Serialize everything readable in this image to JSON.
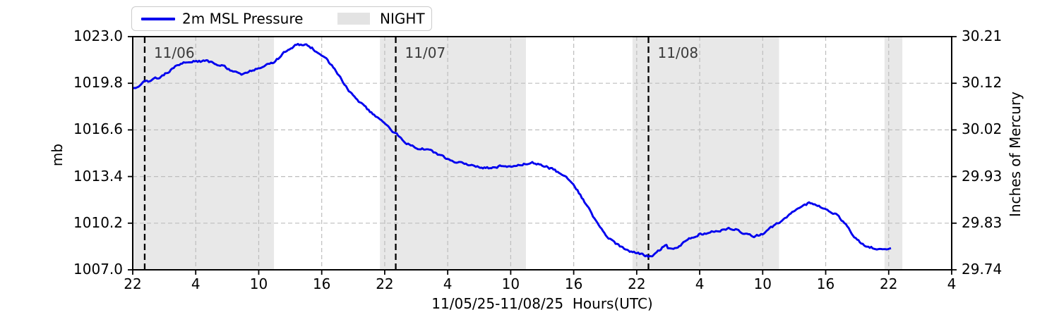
{
  "legend": {
    "items": [
      {
        "label": "2m MSL Pressure",
        "swatch": "line"
      },
      {
        "label": "NIGHT",
        "swatch": "patch"
      }
    ]
  },
  "colors": {
    "pressure_line": "#0000ee",
    "night_band": "#e8e8e8",
    "legend_night_patch": "#e3e3e3",
    "grid": "#bdbdbd",
    "day_line": "#000000",
    "day_label": "#3a3a3a",
    "axis": "#000000"
  },
  "chart_data": {
    "type": "line",
    "title": "",
    "xlabel": "11/05/25-11/08/25  Hours(UTC)",
    "ylabel_left": "mb",
    "ylabel_right": "Inches of Mercury",
    "x_unit": "hours after 11/05/25 22:00 UTC",
    "xlim": [
      0,
      78
    ],
    "ylim_left": [
      1007.0,
      1023.0
    ],
    "ylim_right": [
      29.74,
      30.21
    ],
    "grid": true,
    "legend_position": "top-left",
    "x_ticks": [
      {
        "t": 0,
        "label": "22"
      },
      {
        "t": 6,
        "label": "4"
      },
      {
        "t": 12,
        "label": "10"
      },
      {
        "t": 18,
        "label": "16"
      },
      {
        "t": 24,
        "label": "22"
      },
      {
        "t": 30,
        "label": "4"
      },
      {
        "t": 36,
        "label": "10"
      },
      {
        "t": 42,
        "label": "16"
      },
      {
        "t": 48,
        "label": "22"
      },
      {
        "t": 54,
        "label": "4"
      },
      {
        "t": 60,
        "label": "10"
      },
      {
        "t": 66,
        "label": "16"
      },
      {
        "t": 72,
        "label": "22"
      },
      {
        "t": 78,
        "label": "4"
      }
    ],
    "y_ticks_left": [
      {
        "v": 1023.0,
        "label": "1023.0"
      },
      {
        "v": 1019.8,
        "label": "1019.8"
      },
      {
        "v": 1016.6,
        "label": "1016.6"
      },
      {
        "v": 1013.4,
        "label": "1013.4"
      },
      {
        "v": 1010.2,
        "label": "1010.2"
      },
      {
        "v": 1007.0,
        "label": "1007.0"
      }
    ],
    "y_ticks_right": [
      {
        "v": 1023.0,
        "label": "30.21"
      },
      {
        "v": 1019.8,
        "label": "30.12"
      },
      {
        "v": 1016.6,
        "label": "30.02"
      },
      {
        "v": 1013.4,
        "label": "29.93"
      },
      {
        "v": 1010.2,
        "label": "29.83"
      },
      {
        "v": 1007.0,
        "label": "29.74"
      }
    ],
    "night_bands": [
      [
        0,
        13.45
      ],
      [
        23.54,
        37.45
      ],
      [
        47.6,
        61.56
      ],
      [
        71.6,
        73.3
      ]
    ],
    "day_lines": [
      {
        "t": 1.14,
        "label": "11/06"
      },
      {
        "t": 25.05,
        "label": "11/07"
      },
      {
        "t": 49.12,
        "label": "11/08"
      }
    ],
    "noise_mb": 0.07,
    "series": [
      {
        "name": "2m MSL Pressure",
        "points": [
          [
            0,
            1019.45
          ],
          [
            0.5,
            1019.6
          ],
          [
            1,
            1019.85
          ],
          [
            1.5,
            1019.95
          ],
          [
            2,
            1020.1
          ],
          [
            2.5,
            1020.2
          ],
          [
            3,
            1020.4
          ],
          [
            3.5,
            1020.65
          ],
          [
            4,
            1020.9
          ],
          [
            4.5,
            1021.1
          ],
          [
            5,
            1021.2
          ],
          [
            5.5,
            1021.3
          ],
          [
            6,
            1021.35
          ],
          [
            6.5,
            1021.3
          ],
          [
            7,
            1021.3
          ],
          [
            7.5,
            1021.25
          ],
          [
            8,
            1021.1
          ],
          [
            8.5,
            1021.0
          ],
          [
            9,
            1020.85
          ],
          [
            9.5,
            1020.6
          ],
          [
            10,
            1020.45
          ],
          [
            10.5,
            1020.45
          ],
          [
            11,
            1020.55
          ],
          [
            11.5,
            1020.7
          ],
          [
            12,
            1020.85
          ],
          [
            12.5,
            1020.95
          ],
          [
            13,
            1021.1
          ],
          [
            13.5,
            1021.3
          ],
          [
            14,
            1021.6
          ],
          [
            14.5,
            1021.95
          ],
          [
            15,
            1022.2
          ],
          [
            15.5,
            1022.4
          ],
          [
            16,
            1022.45
          ],
          [
            16.5,
            1022.4
          ],
          [
            17,
            1022.25
          ],
          [
            17.5,
            1022.0
          ],
          [
            18,
            1021.7
          ],
          [
            18.5,
            1021.4
          ],
          [
            19,
            1021.0
          ],
          [
            19.5,
            1020.5
          ],
          [
            20,
            1019.9
          ],
          [
            20.5,
            1019.4
          ],
          [
            21,
            1018.9
          ],
          [
            21.5,
            1018.55
          ],
          [
            22,
            1018.25
          ],
          [
            22.5,
            1017.9
          ],
          [
            23,
            1017.6
          ],
          [
            23.5,
            1017.35
          ],
          [
            24,
            1017.1
          ],
          [
            24.5,
            1016.7
          ],
          [
            25,
            1016.35
          ],
          [
            25.5,
            1016.1
          ],
          [
            26,
            1015.75
          ],
          [
            26.5,
            1015.5
          ],
          [
            27,
            1015.35
          ],
          [
            27.5,
            1015.3
          ],
          [
            28,
            1015.25
          ],
          [
            28.5,
            1015.1
          ],
          [
            29,
            1014.9
          ],
          [
            29.5,
            1014.75
          ],
          [
            30,
            1014.6
          ],
          [
            30.5,
            1014.45
          ],
          [
            31,
            1014.35
          ],
          [
            31.5,
            1014.25
          ],
          [
            32,
            1014.2
          ],
          [
            32.5,
            1014.1
          ],
          [
            33,
            1014.05
          ],
          [
            33.5,
            1014.0
          ],
          [
            34,
            1014.0
          ],
          [
            34.5,
            1014.05
          ],
          [
            35,
            1014.1
          ],
          [
            35.5,
            1014.05
          ],
          [
            36,
            1014.05
          ],
          [
            36.5,
            1014.1
          ],
          [
            37,
            1014.2
          ],
          [
            37.5,
            1014.3
          ],
          [
            38,
            1014.35
          ],
          [
            38.5,
            1014.3
          ],
          [
            39,
            1014.2
          ],
          [
            39.5,
            1014.05
          ],
          [
            40,
            1013.9
          ],
          [
            40.5,
            1013.7
          ],
          [
            41,
            1013.5
          ],
          [
            41.5,
            1013.2
          ],
          [
            42,
            1012.9
          ],
          [
            42.5,
            1012.3
          ],
          [
            43,
            1011.7
          ],
          [
            43.5,
            1011.1
          ],
          [
            44,
            1010.5
          ],
          [
            44.5,
            1009.9
          ],
          [
            45,
            1009.4
          ],
          [
            45.5,
            1009.1
          ],
          [
            46,
            1008.8
          ],
          [
            46.5,
            1008.6
          ],
          [
            47,
            1008.4
          ],
          [
            47.5,
            1008.25
          ],
          [
            48,
            1008.15
          ],
          [
            48.5,
            1008.05
          ],
          [
            49,
            1007.95
          ],
          [
            49.5,
            1007.95
          ],
          [
            50,
            1008.25
          ],
          [
            50.5,
            1008.55
          ],
          [
            50.8,
            1008.7
          ],
          [
            51,
            1008.45
          ],
          [
            51.5,
            1008.5
          ],
          [
            52,
            1008.65
          ],
          [
            52.5,
            1008.85
          ],
          [
            53,
            1009.1
          ],
          [
            53.5,
            1009.3
          ],
          [
            54,
            1009.45
          ],
          [
            54.5,
            1009.5
          ],
          [
            55,
            1009.55
          ],
          [
            55.5,
            1009.65
          ],
          [
            56,
            1009.7
          ],
          [
            56.5,
            1009.8
          ],
          [
            57,
            1009.85
          ],
          [
            57.5,
            1009.75
          ],
          [
            58,
            1009.6
          ],
          [
            58.5,
            1009.45
          ],
          [
            59,
            1009.3
          ],
          [
            59.5,
            1009.35
          ],
          [
            60,
            1009.5
          ],
          [
            60.5,
            1009.75
          ],
          [
            61,
            1010.0
          ],
          [
            61.5,
            1010.25
          ],
          [
            62,
            1010.5
          ],
          [
            62.5,
            1010.75
          ],
          [
            63,
            1011.0
          ],
          [
            63.5,
            1011.2
          ],
          [
            64,
            1011.4
          ],
          [
            64.5,
            1011.6
          ],
          [
            65,
            1011.5
          ],
          [
            65.5,
            1011.35
          ],
          [
            66,
            1011.2
          ],
          [
            66.5,
            1011.0
          ],
          [
            67,
            1010.8
          ],
          [
            67.5,
            1010.45
          ],
          [
            68,
            1010.0
          ],
          [
            68.5,
            1009.5
          ],
          [
            69,
            1009.0
          ],
          [
            69.5,
            1008.8
          ],
          [
            70,
            1008.6
          ],
          [
            70.5,
            1008.5
          ],
          [
            71,
            1008.45
          ],
          [
            71.5,
            1008.45
          ],
          [
            72,
            1008.5
          ],
          [
            72.3,
            1008.6
          ]
        ]
      }
    ]
  }
}
